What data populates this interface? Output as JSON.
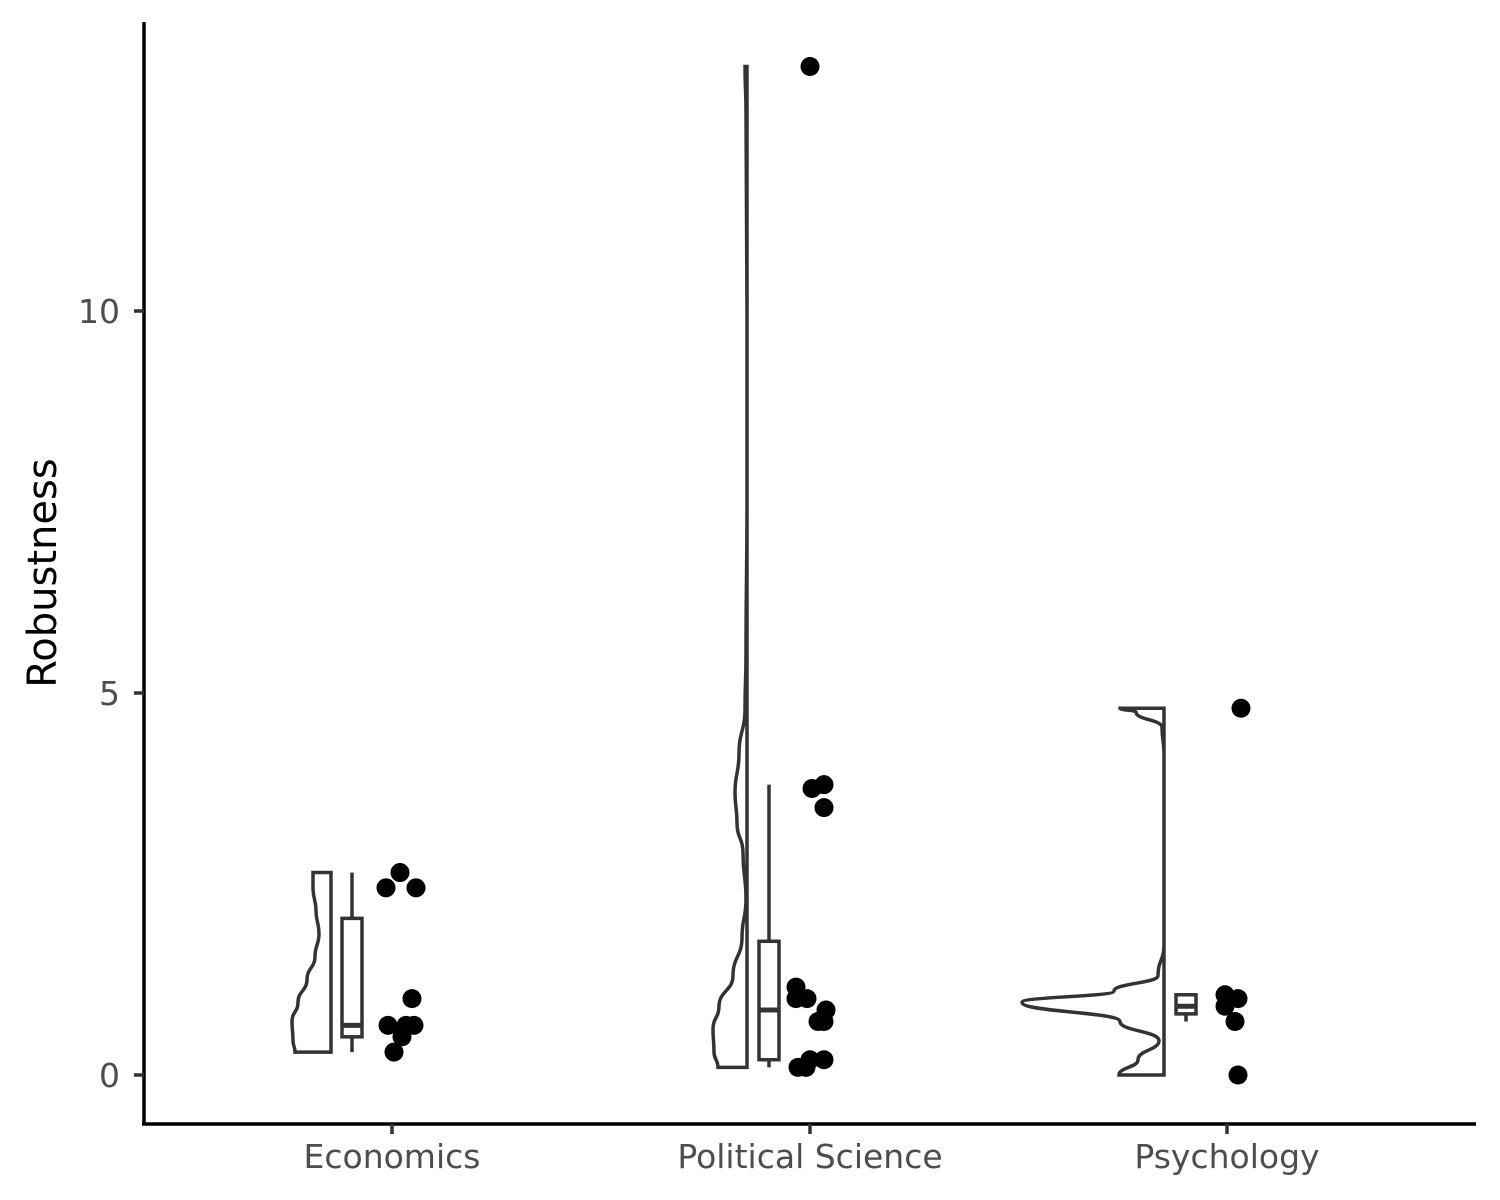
{
  "chart_data": {
    "type": "raincloud",
    "title": "",
    "xlabel": "",
    "ylabel": "Robustness",
    "ylim": [
      -0.6,
      13.8
    ],
    "yticks": [
      0,
      5,
      10
    ],
    "grid": false,
    "categories": [
      "Economics",
      "Political Science",
      "Psychology"
    ],
    "groups": [
      {
        "category": "Economics",
        "box": {
          "min": 0.3,
          "q1": 0.5,
          "median": 0.65,
          "q3": 2.05,
          "max": 2.65
        },
        "points": [
          2.65,
          2.45,
          2.45,
          1.0,
          0.65,
          0.65,
          0.65,
          0.5,
          0.3
        ]
      },
      {
        "category": "Political Science",
        "box": {
          "min": 0.1,
          "q1": 0.2,
          "median": 0.85,
          "q3": 1.75,
          "max": 3.8
        },
        "points": [
          13.2,
          3.8,
          3.75,
          3.5,
          1.15,
          1.0,
          1.0,
          0.85,
          0.7,
          0.7,
          0.2,
          0.2,
          0.1,
          0.1
        ]
      },
      {
        "category": "Psychology",
        "box": {
          "min": 0.7,
          "q1": 0.8,
          "median": 0.9,
          "q3": 1.05,
          "max": 1.05
        },
        "points": [
          4.8,
          1.05,
          1.0,
          0.9,
          0.7,
          0.0
        ]
      }
    ]
  }
}
